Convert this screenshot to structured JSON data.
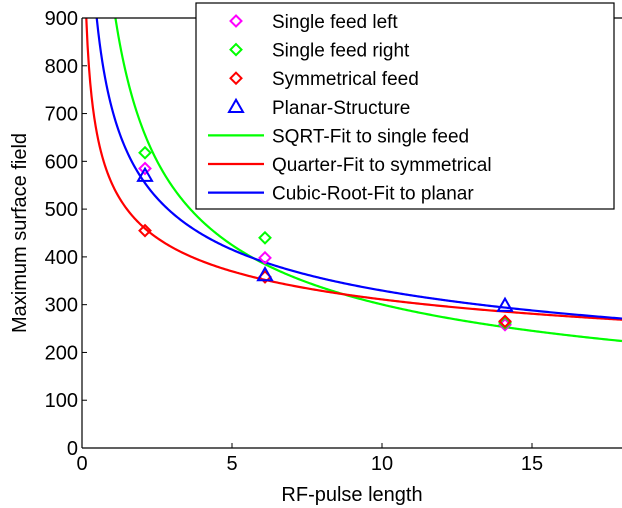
{
  "chart_data": {
    "type": "scatter",
    "xlabel": "RF-pulse length",
    "ylabel": "Maximum surface field",
    "xlim": [
      0,
      18
    ],
    "ylim": [
      0,
      900
    ],
    "xticks": [
      0,
      5,
      10,
      15
    ],
    "yticks": [
      0,
      100,
      200,
      300,
      400,
      500,
      600,
      700,
      800,
      900
    ],
    "grid": false,
    "legend_position": "top-right",
    "series": [
      {
        "name": "Single feed left",
        "kind": "points",
        "marker": "diamond",
        "color": "#ff00ff",
        "x": [
          2.1,
          6.1,
          14.1
        ],
        "y": [
          585,
          398,
          258
        ]
      },
      {
        "name": "Single feed right",
        "kind": "points",
        "marker": "diamond",
        "color": "#00ff00",
        "x": [
          2.1,
          6.1,
          14.1
        ],
        "y": [
          618,
          440,
          262
        ]
      },
      {
        "name": "Symmetrical feed",
        "kind": "points",
        "marker": "diamond",
        "color": "#ff0000",
        "x": [
          2.1,
          6.1,
          14.1
        ],
        "y": [
          455,
          358,
          265
        ]
      },
      {
        "name": "Planar-Structure",
        "kind": "points",
        "marker": "triangle",
        "color": "#0000ff",
        "x": [
          2.1,
          6.1,
          14.1
        ],
        "y": [
          570,
          362,
          298
        ]
      },
      {
        "name": "SQRT-Fit to single feed",
        "kind": "fit",
        "color": "#00ff00",
        "fit": {
          "form": "power",
          "a": 950,
          "p": 0.5
        }
      },
      {
        "name": "Quarter-Fit to symmetrical",
        "kind": "fit",
        "color": "#ff0000",
        "fit": {
          "form": "power",
          "a": 553,
          "p": 0.25
        }
      },
      {
        "name": "Cubic-Root-Fit to planar",
        "kind": "fit",
        "color": "#0000ff",
        "fit": {
          "form": "power",
          "a": 710,
          "p": 0.3333
        }
      }
    ]
  }
}
